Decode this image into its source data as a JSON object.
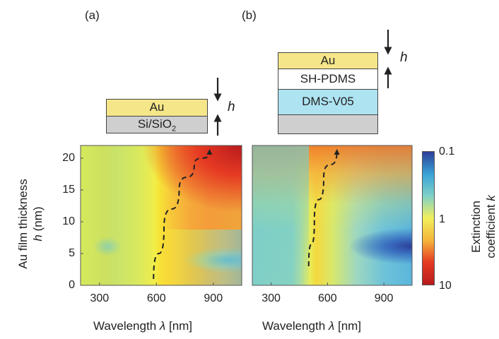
{
  "panels": [
    {
      "label": "(a)",
      "stack": [
        {
          "text": "Au",
          "color": "#f6e68a"
        },
        {
          "text": "Si/SiO",
          "sub": "2",
          "color": "#cfcfcf"
        }
      ],
      "thickness_symbol": "h"
    },
    {
      "label": "(b)",
      "stack": [
        {
          "text": "Au",
          "color": "#f6e68a"
        },
        {
          "text": "SH-PDMS",
          "color": "#ffffff"
        },
        {
          "text": "DMS-V05",
          "color": "#aee3f2"
        },
        {
          "text": "",
          "color": "#cfcfcf"
        }
      ],
      "thickness_symbol": "h"
    }
  ],
  "chart_data": [
    {
      "type": "heatmap",
      "panel": "(a)",
      "xlabel": "Wavelength λ [nm]",
      "ylabel": "Au film thickness h (nm)",
      "x_ticks": [
        300,
        600,
        900
      ],
      "y_ticks": [
        0,
        5,
        10,
        15,
        20
      ],
      "xlim": [
        200,
        1050
      ],
      "ylim": [
        0,
        22
      ],
      "trend_arrow": {
        "x": [
          585,
          640,
          720,
          800,
          880
        ],
        "y": [
          1,
          9,
          15,
          19,
          21
        ]
      },
      "description_regions": [
        {
          "x": [
            200,
            550
          ],
          "y": [
            1,
            22
          ],
          "k_level": "~1"
        },
        {
          "x": [
            600,
            1050
          ],
          "y": [
            10,
            22
          ],
          "k_level": "~10"
        },
        {
          "x": [
            850,
            1050
          ],
          "y": [
            2,
            5
          ],
          "k_level": "~0.5"
        }
      ]
    },
    {
      "type": "heatmap",
      "panel": "(b)",
      "xlabel": "Wavelength λ [nm]",
      "x_ticks": [
        300,
        600,
        900
      ],
      "xlim": [
        200,
        1050
      ],
      "ylim": [
        0,
        22
      ],
      "trend_arrow": {
        "x": [
          500,
          530,
          580,
          650
        ],
        "y": [
          3,
          10,
          17,
          21
        ]
      },
      "description_regions": [
        {
          "x": [
            200,
            450
          ],
          "y": [
            1,
            22
          ],
          "k_level": "~0.7"
        },
        {
          "x": [
            500,
            1050
          ],
          "y": [
            15,
            22
          ],
          "k_level": "~5"
        },
        {
          "x": [
            750,
            1050
          ],
          "y": [
            1,
            8
          ],
          "k_level": "~0.1"
        }
      ]
    }
  ],
  "colorbar": {
    "label_line1": "Extinction",
    "label_line2": "coefficient",
    "symbol": "k",
    "ticks": [
      "0.1",
      "1",
      "10"
    ],
    "colors": [
      "#2c3f99",
      "#3aa3d6",
      "#7fd0c8",
      "#f2ef5c",
      "#f5b33b",
      "#e63b23",
      "#b81a1c"
    ]
  },
  "axis_text": {
    "ylabel_line1": "Au film thickness",
    "ylabel_line2": "h",
    "ylabel_unit": " (nm)",
    "xlabel_a": "Wavelength ",
    "xlabel_sym": "λ",
    "xlabel_unit": " [nm]"
  }
}
